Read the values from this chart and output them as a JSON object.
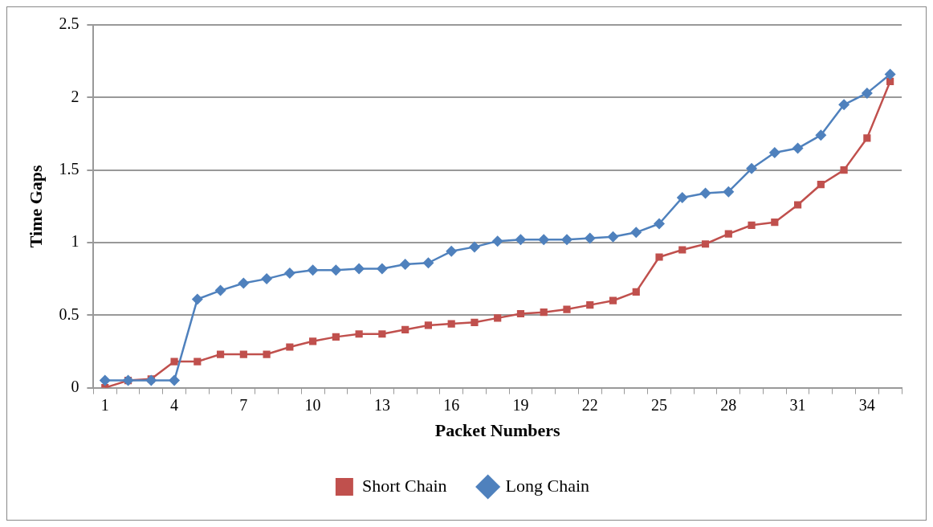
{
  "chart_data": {
    "type": "line",
    "xlabel": "Packet Numbers",
    "ylabel": "Time Gaps",
    "categories": [
      "1",
      null,
      null,
      "4",
      null,
      null,
      "7",
      null,
      null,
      "10",
      null,
      null,
      "13",
      null,
      null,
      "16",
      null,
      null,
      "19",
      null,
      null,
      "22",
      null,
      null,
      "25",
      null,
      null,
      "28",
      null,
      null,
      "31",
      null,
      null,
      "34",
      null
    ],
    "series": [
      {
        "name": "Short Chain",
        "color": "#c0504d",
        "marker": "square",
        "values": [
          0,
          0.05,
          0.06,
          0.18,
          0.18,
          0.23,
          0.23,
          0.23,
          0.28,
          0.32,
          0.35,
          0.37,
          0.37,
          0.4,
          0.43,
          0.44,
          0.45,
          0.48,
          0.51,
          0.52,
          0.54,
          0.57,
          0.6,
          0.66,
          0.9,
          0.95,
          0.99,
          1.06,
          1.12,
          1.14,
          1.26,
          1.4,
          1.5,
          1.72,
          2.11
        ]
      },
      {
        "name": "Long Chain",
        "color": "#4f81bd",
        "marker": "diamond",
        "values": [
          0.05,
          0.05,
          0.05,
          0.05,
          0.61,
          0.67,
          0.72,
          0.75,
          0.79,
          0.81,
          0.81,
          0.82,
          0.82,
          0.85,
          0.86,
          0.94,
          0.97,
          1.01,
          1.02,
          1.02,
          1.02,
          1.03,
          1.04,
          1.07,
          1.13,
          1.31,
          1.34,
          1.35,
          1.51,
          1.62,
          1.65,
          1.74,
          1.95,
          2.03,
          2.16
        ]
      }
    ],
    "ylim": [
      0,
      2.5
    ],
    "yticks": [
      0,
      0.5,
      1,
      1.5,
      2,
      2.5
    ],
    "grid": "y",
    "legend": "bottom",
    "line_style": "solid"
  }
}
